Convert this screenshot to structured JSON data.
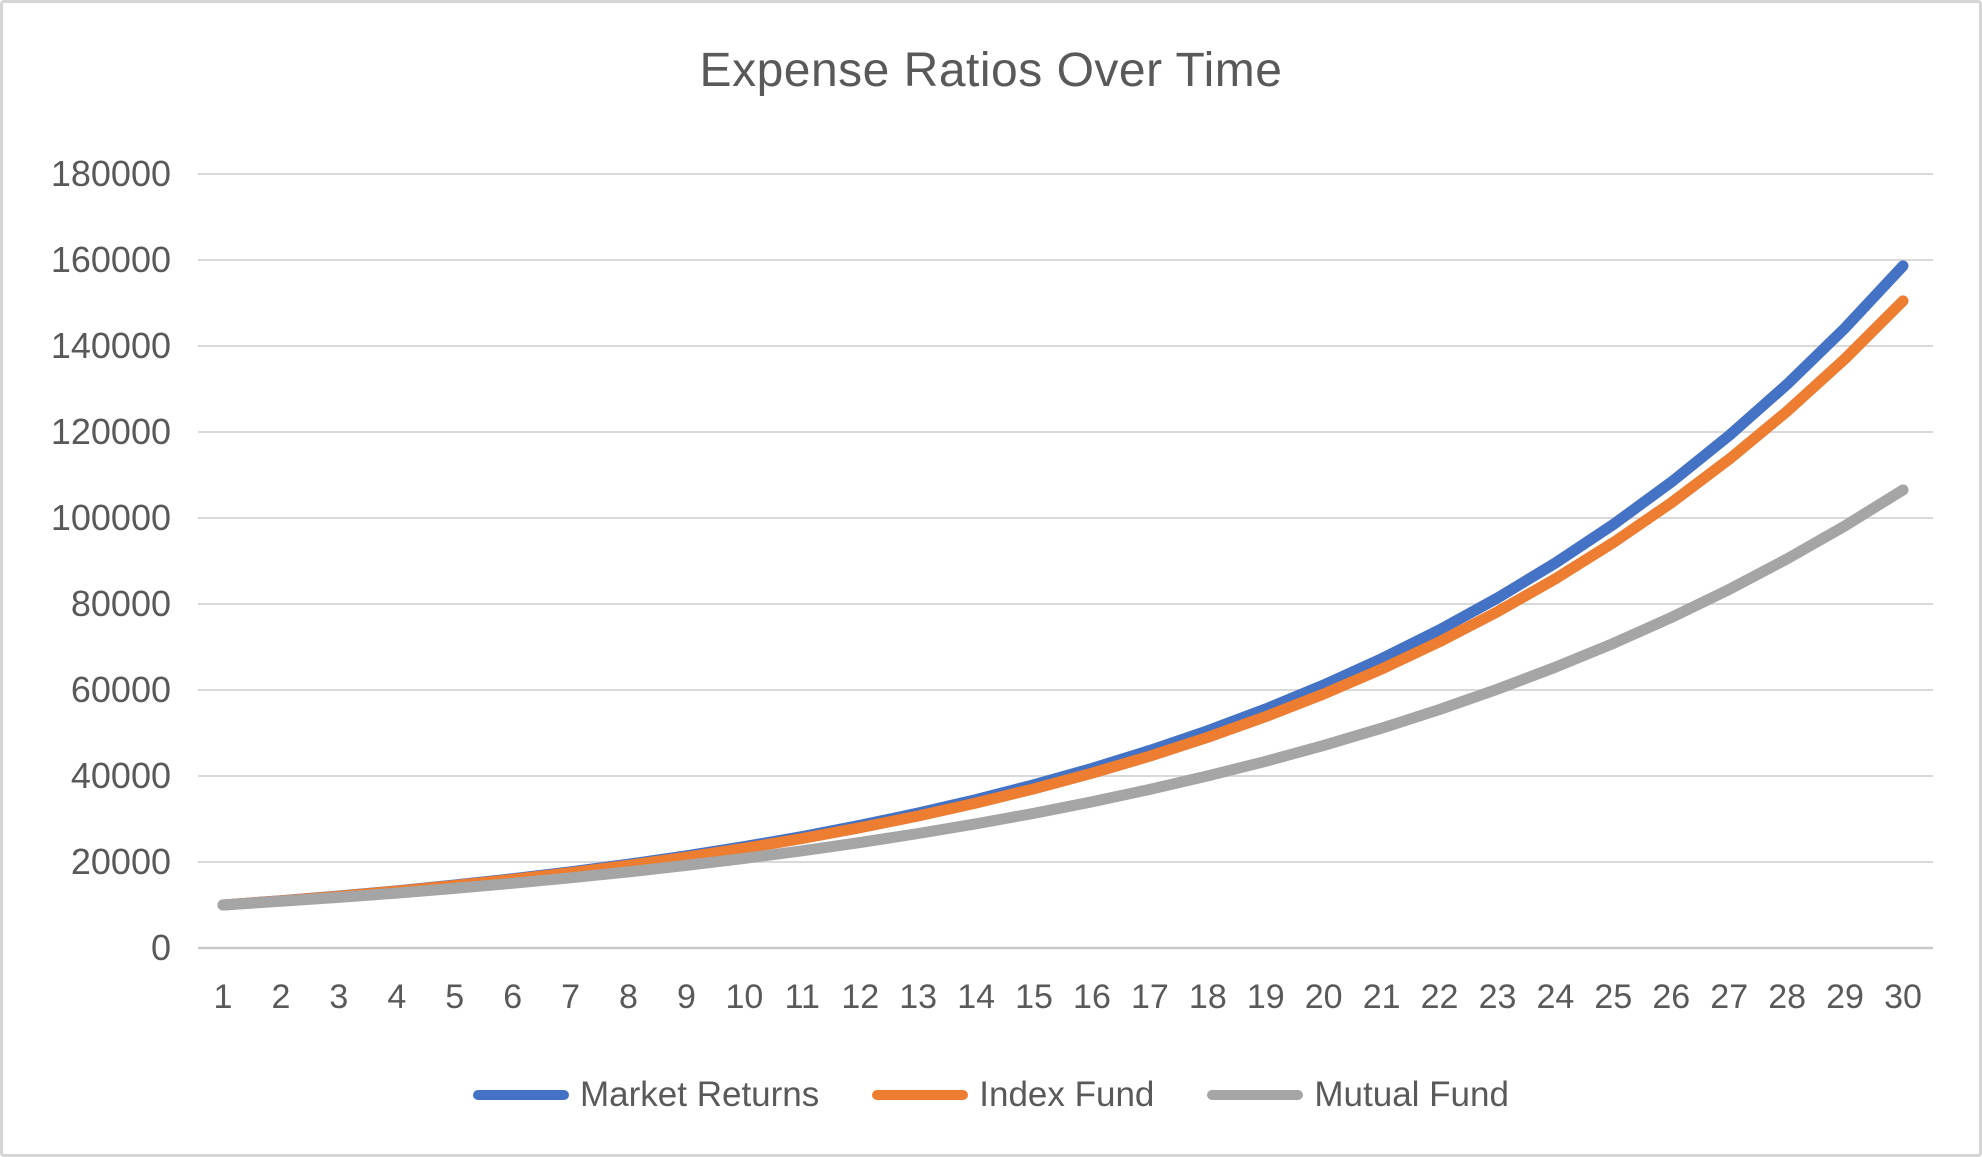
{
  "window": {
    "background": "#ffffff",
    "border_color": "#d6d6d6"
  },
  "chart_data": {
    "type": "line",
    "title": "Expense Ratios Over Time",
    "xlabel": "",
    "ylabel": "",
    "x": [
      1,
      2,
      3,
      4,
      5,
      6,
      7,
      8,
      9,
      10,
      11,
      12,
      13,
      14,
      15,
      16,
      17,
      18,
      19,
      20,
      21,
      22,
      23,
      24,
      25,
      26,
      27,
      28,
      29,
      30
    ],
    "ylim": [
      0,
      180000
    ],
    "y_tick_step": 20000,
    "y_ticks": [
      0,
      20000,
      40000,
      60000,
      80000,
      100000,
      120000,
      140000,
      160000,
      180000
    ],
    "grid": true,
    "legend_position": "bottom",
    "series": [
      {
        "name": "Market Returns",
        "color": "#4472C4",
        "values": [
          10000,
          11000,
          12100,
          13310,
          14641,
          16105,
          17716,
          19487,
          21436,
          23579,
          25937,
          28531,
          31384,
          34523,
          37975,
          41772,
          45950,
          50545,
          55599,
          61159,
          67275,
          74002,
          81403,
          89543,
          98497,
          108347,
          119182,
          131100,
          144210,
          158631
        ]
      },
      {
        "name": "Index Fund",
        "color": "#ED7D31",
        "values": [
          10000,
          10980,
          12056,
          13238,
          14535,
          15959,
          17523,
          19240,
          21126,
          23196,
          25470,
          27966,
          30706,
          33716,
          37020,
          40648,
          44631,
          49005,
          53807,
          59081,
          64870,
          71228,
          78208,
          85872,
          94288,
          103532,
          113678,
          124819,
          137051,
          150482
        ]
      },
      {
        "name": "Mutual Fund",
        "color": "#A5A5A5",
        "values": [
          10000,
          10850,
          11772,
          12773,
          13859,
          15037,
          16315,
          17701,
          19206,
          20839,
          22610,
          24532,
          26617,
          28879,
          31334,
          33997,
          36887,
          40023,
          43425,
          47116,
          51120,
          55466,
          60180,
          65296,
          70846,
          76868,
          83401,
          90490,
          98182,
          106528
        ]
      }
    ],
    "colors": {
      "text": "#595959",
      "gridline": "#D9D9D9",
      "axis_line": "#C9C9C9"
    }
  }
}
